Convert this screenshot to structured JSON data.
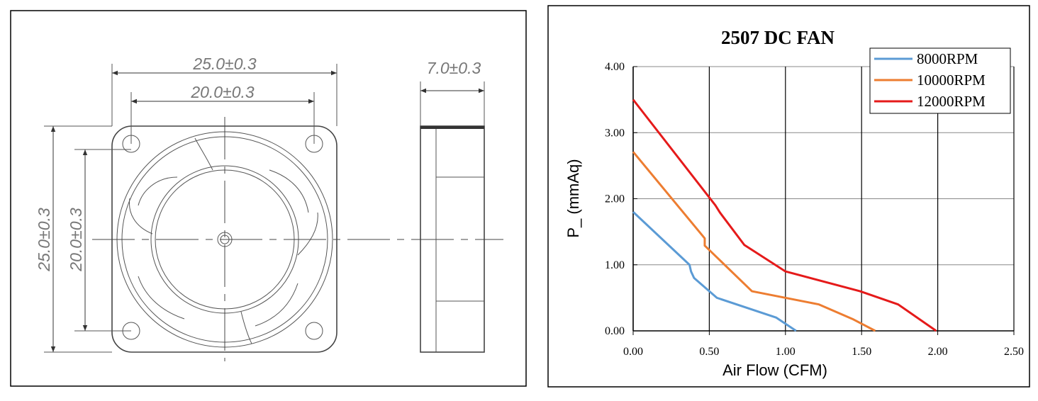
{
  "drawing": {
    "dimensions": {
      "front_width": "25.0±0.3",
      "hole_spacing_x": "20.0±0.3",
      "thickness": "7.0±0.3",
      "front_height": "25.0±0.3",
      "hole_spacing_y": "20.0±0.3"
    }
  },
  "chart_data": {
    "type": "line",
    "title": "2507 DC FAN",
    "x_label": "Air Flow (CFM)",
    "y_label": "P_ (mmAq)",
    "xlim": [
      0,
      2.5
    ],
    "ylim": [
      0,
      4
    ],
    "xticks": [
      {
        "value": 0,
        "label": "0.00"
      },
      {
        "value": 0.5,
        "label": "0.50"
      },
      {
        "value": 1,
        "label": "1.00"
      },
      {
        "value": 1.5,
        "label": "1.50"
      },
      {
        "value": 2,
        "label": "2.00"
      },
      {
        "value": 2.5,
        "label": "2.50"
      }
    ],
    "yticks": [
      {
        "value": 0,
        "label": "0.00"
      },
      {
        "value": 1,
        "label": "1.00"
      },
      {
        "value": 2,
        "label": "2.00"
      },
      {
        "value": 3,
        "label": "3.00"
      },
      {
        "value": 4,
        "label": "4.00"
      }
    ],
    "grid": true,
    "legend": "top-right",
    "series": [
      {
        "name": "8000RPM",
        "color": "#5b9bd5",
        "x": [
          0,
          0.37,
          0.38,
          0.4,
          0.55,
          0.94,
          1.07
        ],
        "values": [
          1.8,
          1.0,
          0.9,
          0.8,
          0.5,
          0.2,
          0
        ]
      },
      {
        "name": "10000RPM",
        "color": "#ed7d31",
        "x": [
          0,
          0.47,
          0.47,
          0.78,
          1.22,
          1.44,
          1.59
        ],
        "values": [
          2.71,
          1.4,
          1.29,
          0.6,
          0.4,
          0.18,
          0
        ]
      },
      {
        "name": "12000RPM",
        "color": "#e51a1a",
        "x": [
          0,
          0.54,
          0.57,
          0.73,
          1.0,
          1.49,
          1.74,
          1.99
        ],
        "values": [
          3.5,
          1.9,
          1.79,
          1.3,
          0.9,
          0.6,
          0.4,
          0
        ]
      }
    ]
  }
}
